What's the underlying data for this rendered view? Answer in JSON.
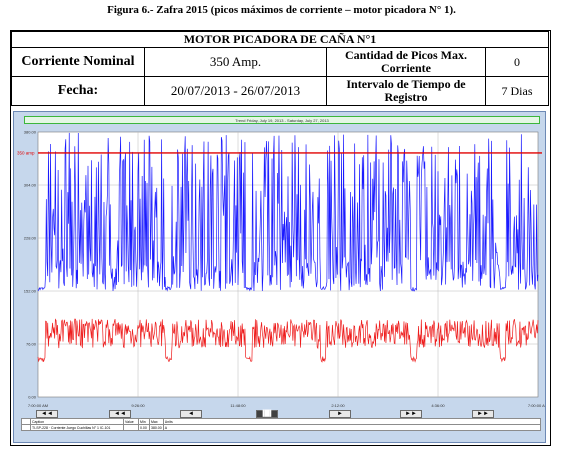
{
  "caption": "Figura 6.- Zafra 2015 (picos máximos de corriente – motor picadora N° 1).",
  "table": {
    "title": "MOTOR PICADORA DE CAÑA N°1",
    "nominal_label": "Corriente Nominal",
    "nominal_value": "350 Amp.",
    "peaks_label_line1": "Cantidad de Picos Max.",
    "peaks_label_line2": "Corriente",
    "peaks_value": "0",
    "date_label": "Fecha:",
    "date_value": "20/07/2013 - 26/07/2013",
    "interval_label_line1": "Intervalo de Tiempo de",
    "interval_label_line2": "Registro",
    "interval_value": "7 Dias"
  },
  "trend": {
    "title": "Trend     Friday, July 19, 2013 - Saturday, July 27, 2013",
    "limit_label": "350 amp",
    "y_ticks": [
      "380.00",
      "304.00",
      "228.00",
      "152.00",
      "76.00",
      "0.00"
    ],
    "x_ticks": [
      "7:00:00 AM",
      "9:26:00",
      "11:48:00",
      "2:12:00",
      "4:36:00",
      "7:00:00 AM"
    ],
    "nav_buttons": [
      "◄◄",
      "◄◄",
      "◄",
      "▐█▌",
      "►",
      "►►",
      "►►"
    ],
    "legend_headers": [
      "Caption",
      "Value",
      "Min",
      "Max",
      "Units"
    ],
    "legend_row": [
      "TI-SP-228 · Corriente Juego Cuchillas N° 1 IC-101",
      "",
      "0.00",
      "380.00",
      "A"
    ],
    "colors": {
      "current": "#1a1aff",
      "lower": "#ee1c1c",
      "limit": "#e00000",
      "plot_bg": "#ffffff"
    }
  },
  "chart_data": {
    "type": "line",
    "title": "Trend     Friday, July 19, 2013 - Saturday, July 27, 2013",
    "xlabel": "",
    "ylabel": "",
    "ylim": [
      0,
      380
    ],
    "x_ticks": [
      "7:00:00 AM",
      "9:26:00",
      "11:48:00",
      "2:12:00",
      "4:36:00",
      "7:00:00 AM"
    ],
    "series": [
      {
        "name": "",
        "color": "#1a1aff",
        "range": [
          152,
          380
        ]
      },
      {
        "name": "",
        "color": "#ee1c1c",
        "range": [
          50,
          112
        ]
      }
    ],
    "reference_line": {
      "label": "350 amp",
      "value": 350,
      "color": "#e00000"
    },
    "grid": true
  }
}
